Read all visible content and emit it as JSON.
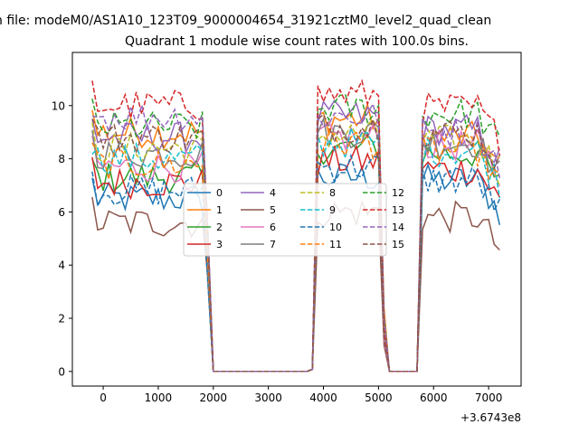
{
  "chart_data": {
    "type": "line",
    "suptitle": "n file: modeM0/AS1A10_123T09_9000004654_31921cztM0_level2_quad_clean",
    "title": "Quadrant 1 module wise count rates with 100.0s bins.",
    "xlabel": "",
    "ylabel": "",
    "x_offset_label": "+3.6743e8",
    "xlim": [
      -560,
      7590
    ],
    "ylim": [
      -0.55,
      12.0
    ],
    "x_ticks": [
      {
        "value": 0,
        "label": "0"
      },
      {
        "value": 1000,
        "label": "1000"
      },
      {
        "value": 2000,
        "label": "2000"
      },
      {
        "value": 3000,
        "label": "3000"
      },
      {
        "value": 4000,
        "label": "4000"
      },
      {
        "value": 5000,
        "label": "5000"
      },
      {
        "value": 6000,
        "label": "6000"
      },
      {
        "value": 7000,
        "label": "7000"
      }
    ],
    "y_ticks": [
      {
        "value": 0,
        "label": "0"
      },
      {
        "value": 2,
        "label": "2"
      },
      {
        "value": 4,
        "label": "4"
      },
      {
        "value": 6,
        "label": "6"
      },
      {
        "value": 8,
        "label": "8"
      },
      {
        "value": 10,
        "label": "10"
      }
    ],
    "segments": [
      {
        "start": -200,
        "end": 2000
      },
      {
        "start": 2100,
        "end": 3800
      },
      {
        "start": 3900,
        "end": 5100
      },
      {
        "start": 5200,
        "end": 5700
      },
      {
        "start": 5800,
        "end": 7200
      }
    ],
    "bin_width": 100,
    "legend_position": "center",
    "series": [
      {
        "name": "0",
        "color": "#1f77b4",
        "dashed": false,
        "on1": 6.5,
        "on2": 7.3,
        "on3": 7.2
      },
      {
        "name": "1",
        "color": "#ff7f0e",
        "dashed": false,
        "on1": 9.0,
        "on2": 9.5,
        "on3": 8.8
      },
      {
        "name": "2",
        "color": "#2ca02c",
        "dashed": false,
        "on1": 7.3,
        "on2": 8.4,
        "on3": 8.2
      },
      {
        "name": "3",
        "color": "#d62728",
        "dashed": false,
        "on1": 7.1,
        "on2": 7.9,
        "on3": 7.6
      },
      {
        "name": "4",
        "color": "#9467bd",
        "dashed": false,
        "on1": 8.8,
        "on2": 9.6,
        "on3": 9.1
      },
      {
        "name": "5",
        "color": "#8c564b",
        "dashed": false,
        "on1": 5.6,
        "on2": 6.0,
        "on3": 5.8
      },
      {
        "name": "6",
        "color": "#e377c2",
        "dashed": false,
        "on1": 7.7,
        "on2": 8.8,
        "on3": 8.5
      },
      {
        "name": "7",
        "color": "#7f7f7f",
        "dashed": false,
        "on1": 8.2,
        "on2": 9.0,
        "on3": 8.6
      },
      {
        "name": "8",
        "color": "#bcbd22",
        "dashed": true,
        "on1": 8.4,
        "on2": 8.9,
        "on3": 8.7
      },
      {
        "name": "9",
        "color": "#17becf",
        "dashed": true,
        "on1": 8.0,
        "on2": 8.6,
        "on3": 8.3
      },
      {
        "name": "10",
        "color": "#1f77b4",
        "dashed": true,
        "on1": 6.8,
        "on2": 7.7,
        "on3": 7.2
      },
      {
        "name": "11",
        "color": "#ff7f0e",
        "dashed": true,
        "on1": 7.8,
        "on2": 8.6,
        "on3": 8.3
      },
      {
        "name": "12",
        "color": "#2ca02c",
        "dashed": true,
        "on1": 9.2,
        "on2": 9.9,
        "on3": 9.7
      },
      {
        "name": "13",
        "color": "#d62728",
        "dashed": true,
        "on1": 10.0,
        "on2": 10.4,
        "on3": 9.9
      },
      {
        "name": "14",
        "color": "#9467bd",
        "dashed": true,
        "on1": 9.6,
        "on2": 9.6,
        "on3": 9.0
      },
      {
        "name": "15",
        "color": "#8c564b",
        "dashed": true,
        "on1": 8.8,
        "on2": 9.2,
        "on3": 9.0
      }
    ]
  }
}
